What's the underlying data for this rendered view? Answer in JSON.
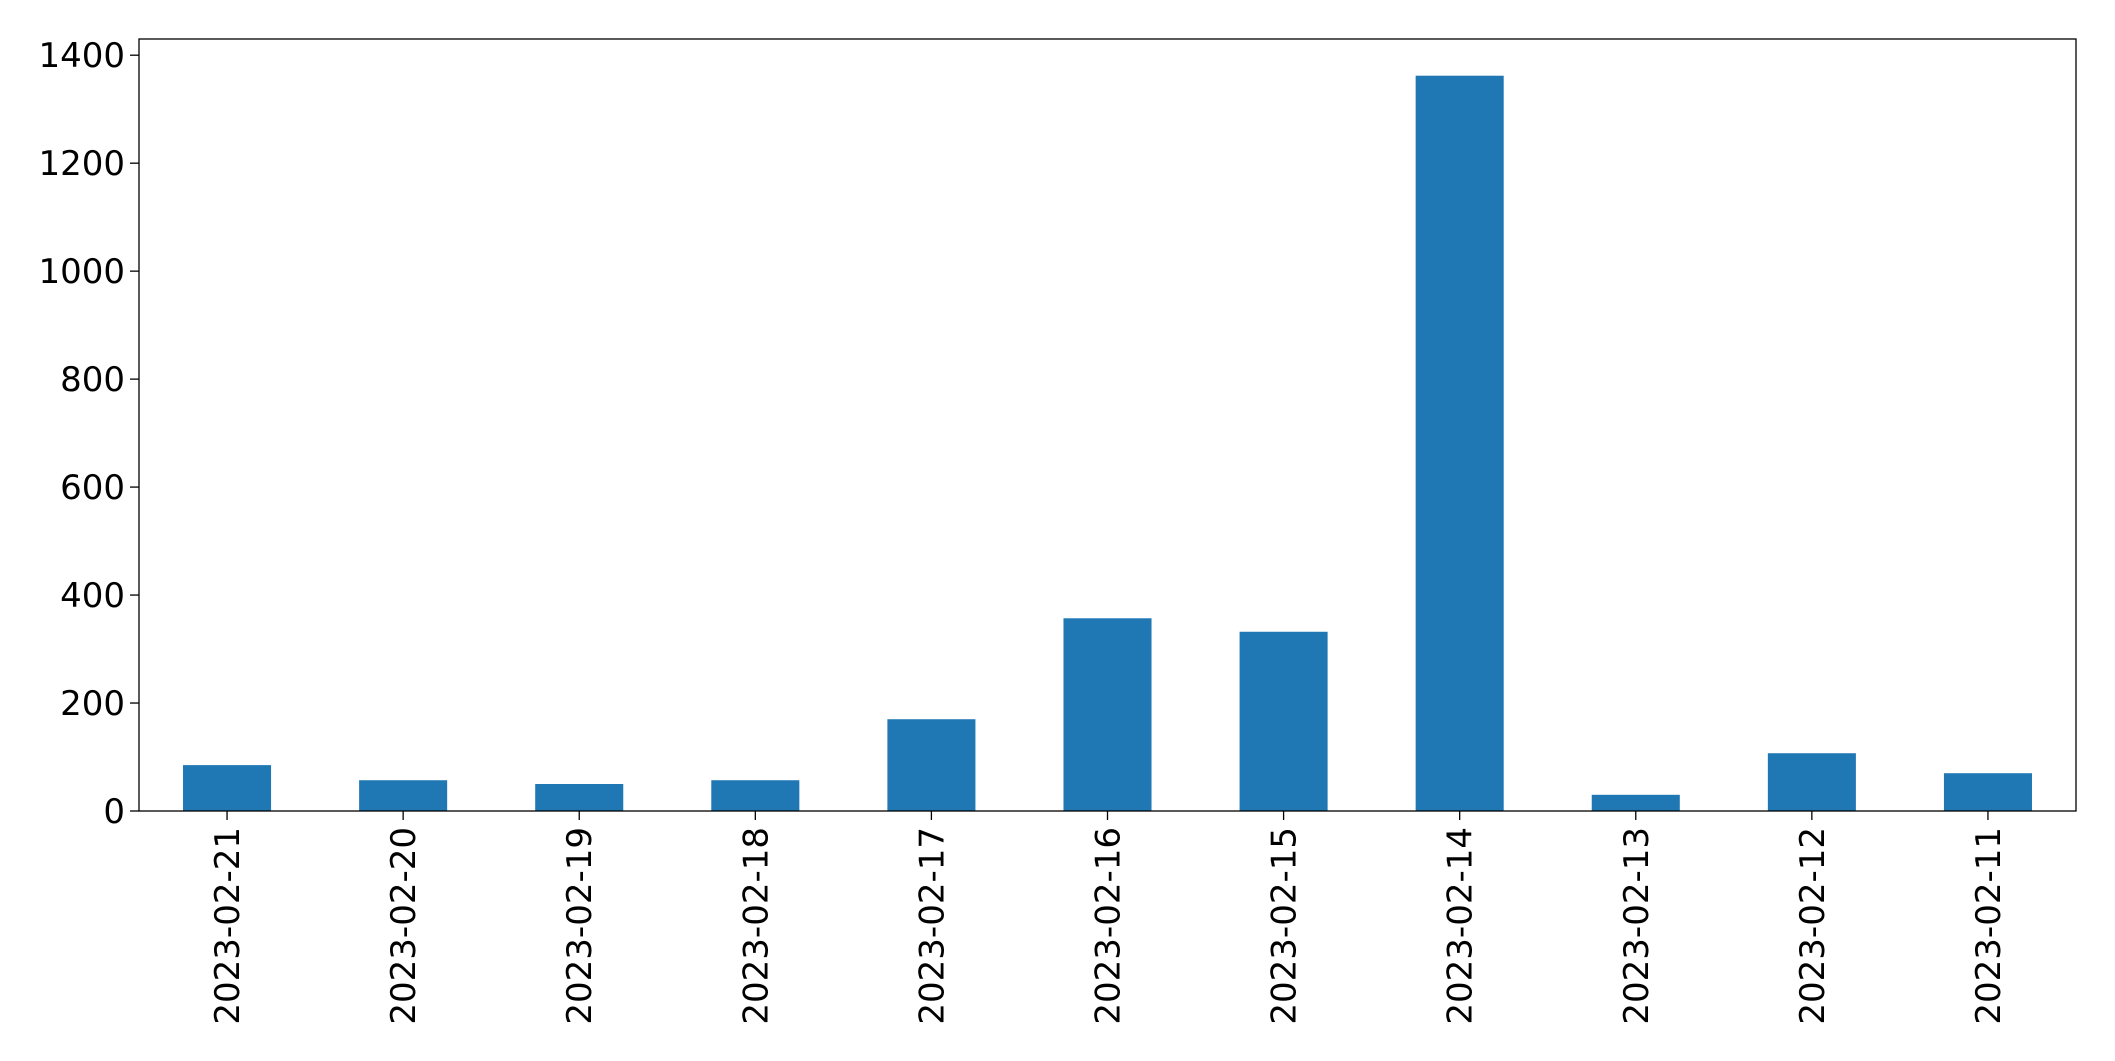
{
  "chart_data": {
    "type": "bar",
    "categories": [
      "2023-02-21",
      "2023-02-20",
      "2023-02-19",
      "2023-02-18",
      "2023-02-17",
      "2023-02-16",
      "2023-02-15",
      "2023-02-14",
      "2023-02-13",
      "2023-02-12",
      "2023-02-11"
    ],
    "values": [
      85,
      57,
      50,
      57,
      170,
      357,
      332,
      1362,
      30,
      107,
      70
    ],
    "color": "#1f77b4",
    "ylim": [
      0,
      1430
    ],
    "yticks": [
      0,
      200,
      400,
      600,
      800,
      1000,
      1200,
      1400
    ],
    "grid": false
  }
}
